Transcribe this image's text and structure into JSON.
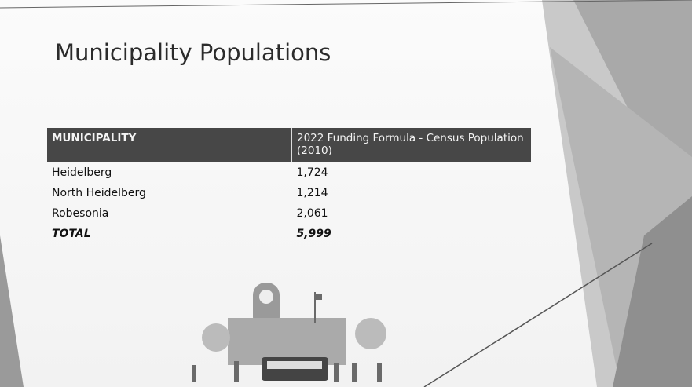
{
  "header": {
    "title": "Municipality Populations"
  },
  "table": {
    "columns": [
      "MUNICIPALITY",
      "2022 Funding Formula - Census Population (2010)"
    ],
    "rows": [
      [
        "Heidelberg",
        "1,724"
      ],
      [
        "North Heidelberg",
        "1,214"
      ],
      [
        "Robesonia",
        "2,061"
      ]
    ],
    "total": [
      "TOTAL",
      "5,999"
    ]
  }
}
